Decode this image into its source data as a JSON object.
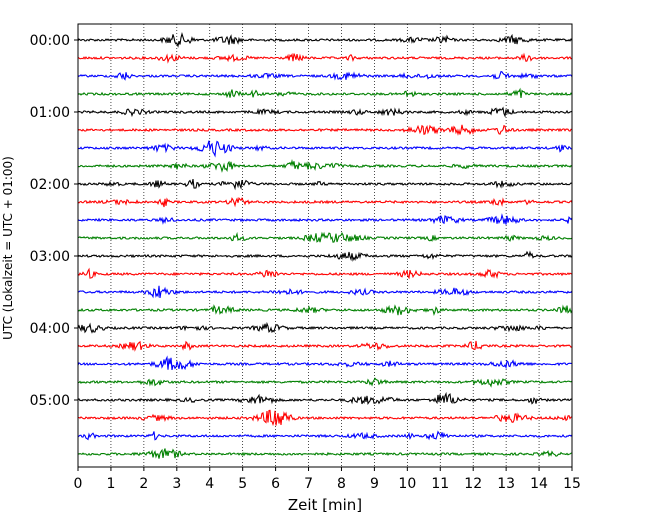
{
  "chart_data": {
    "type": "line",
    "title": "",
    "xlabel": "Zeit  [min]",
    "ylabel": "UTC (Lokalzeit = UTC + 01:00)",
    "xlim": [
      0,
      15
    ],
    "x_ticks": [
      "0",
      "1",
      "2",
      "3",
      "4",
      "5",
      "6",
      "7",
      "8",
      "9",
      "10",
      "11",
      "12",
      "13",
      "14",
      "15"
    ],
    "y_ticks": [
      "00:00",
      "01:00",
      "02:00",
      "03:00",
      "04:00",
      "05:00"
    ],
    "grid": "vertical dotted",
    "trace_colors": [
      "#000000",
      "#ff0000",
      "#0000ff",
      "#008000"
    ],
    "trace_count": 24,
    "trace_interval_min": 15
  }
}
